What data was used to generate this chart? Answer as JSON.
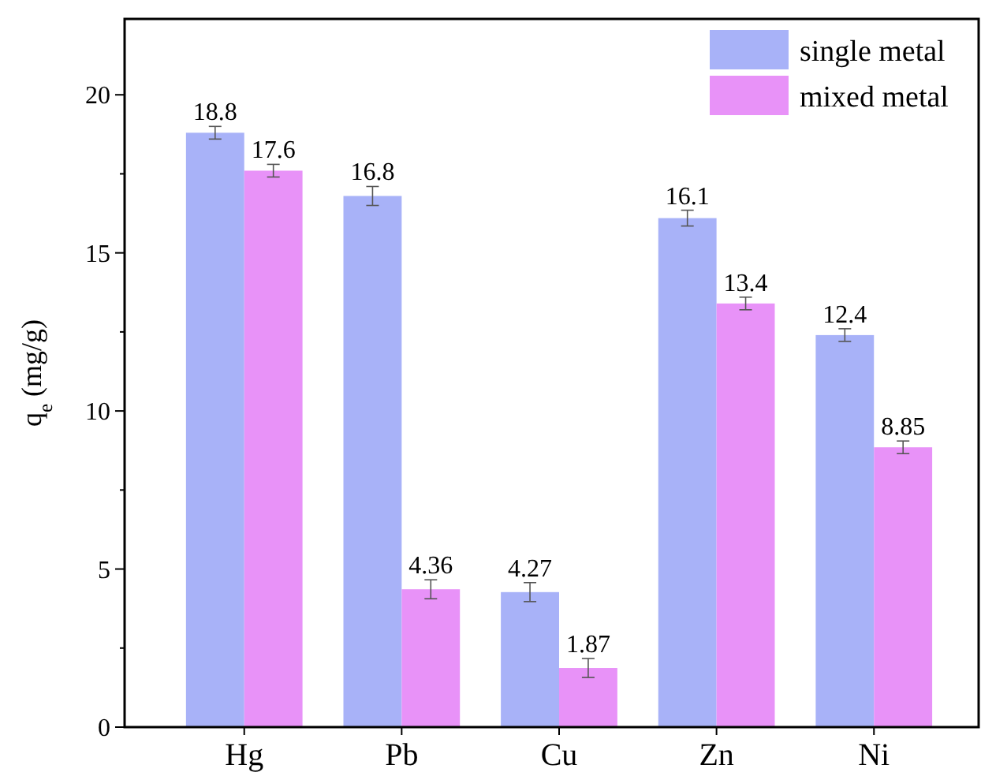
{
  "chart_data": {
    "type": "bar",
    "ylabel": "q$_{e}$ (mg/g)",
    "categories": [
      "Hg",
      "Pb",
      "Cu",
      "Zn",
      "Ni"
    ],
    "series": [
      {
        "name": "single metal",
        "color": "#a8b2f8",
        "values": [
          18.8,
          16.8,
          4.27,
          16.1,
          12.4
        ],
        "errors": [
          0.2,
          0.3,
          0.3,
          0.25,
          0.2
        ]
      },
      {
        "name": "mixed metal",
        "color": "#e892f8",
        "values": [
          17.6,
          4.36,
          1.87,
          13.4,
          8.85
        ],
        "errors": [
          0.2,
          0.3,
          0.3,
          0.2,
          0.2
        ]
      }
    ],
    "ylim": [
      0,
      22.4
    ],
    "yticks": [
      0,
      {
        "value": 2.5,
        "label": null
      },
      5,
      {
        "value": 7.5,
        "label": null
      },
      10,
      {
        "value": 12.5,
        "label": null
      },
      15,
      {
        "value": 17.5,
        "label": null
      },
      20
    ],
    "data_labels": true,
    "legend": "top right",
    "grid": false
  }
}
